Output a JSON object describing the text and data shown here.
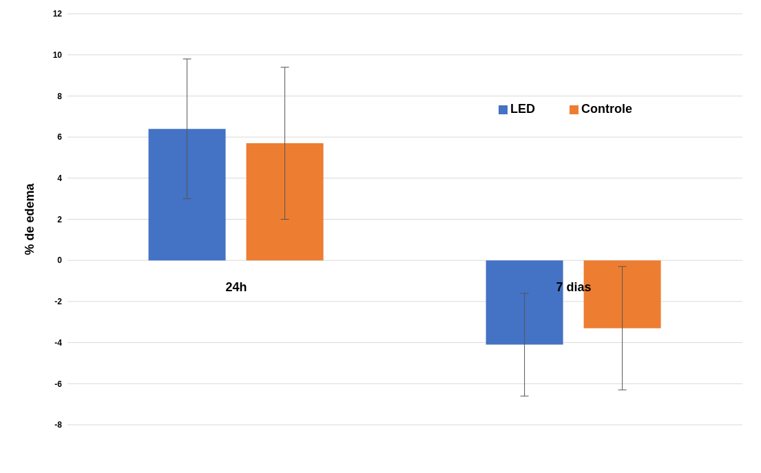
{
  "chart_data": {
    "type": "bar",
    "ylabel": "% de edema",
    "categories": [
      "24h",
      "7 dias"
    ],
    "series": [
      {
        "name": "LED",
        "color": "#4472c4",
        "values": [
          6.4,
          -4.1
        ],
        "errors": [
          3.4,
          2.5
        ]
      },
      {
        "name": "Controle",
        "color": "#ed7d31",
        "values": [
          5.7,
          -3.3
        ],
        "errors": [
          3.7,
          3.0
        ]
      }
    ],
    "ylim": [
      -8,
      12
    ],
    "yticks": [
      -8,
      -6,
      -4,
      -2,
      0,
      2,
      4,
      6,
      8,
      10,
      12
    ],
    "grid": "y",
    "legend": "top right"
  }
}
